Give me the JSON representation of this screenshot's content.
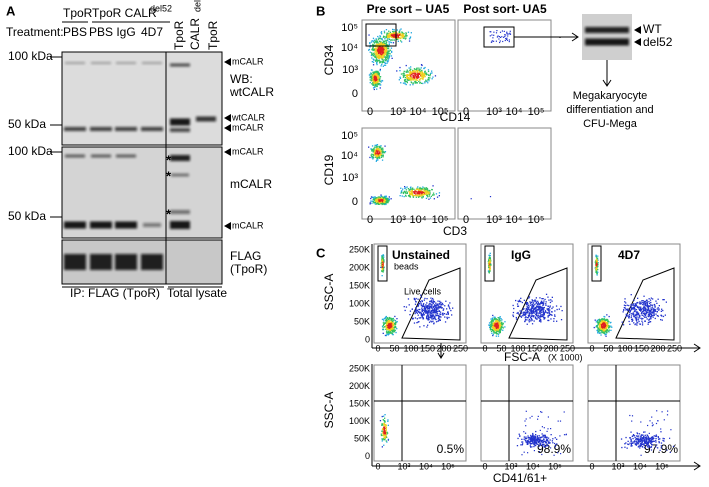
{
  "panel_a": {
    "label": "A",
    "header": {
      "tpor": "TpoR",
      "tpor_calr": "TpoR CALR",
      "tpor_calr_sup": "del52",
      "treatment": "Treatment:",
      "lanes": [
        "PBS",
        "PBS",
        "IgG",
        "4D7"
      ],
      "lysate_tpor": "TpoR",
      "lysate_calr": "CALR",
      "lysate_calr_sup": "del52",
      "lysate_tpor2": "TpoR"
    },
    "markers": [
      "100 kDa",
      "50 kDa",
      "100 kDa",
      "50 kDa"
    ],
    "right_labels": [
      {
        "text": "mCALR",
        "color": "#e0201b"
      },
      {
        "text": "WB:",
        "color": "#000000"
      },
      {
        "text": "wtCALR",
        "color": "#000000"
      },
      {
        "text": "wtCALR",
        "color": "#a0522d"
      },
      {
        "text": "mCALR",
        "color": "#e0201b"
      },
      {
        "text": "mCALR",
        "color": "#e0201b"
      },
      {
        "text": "mCALR",
        "color": "#000000"
      },
      {
        "text": "mCALR",
        "color": "#e0201b"
      },
      {
        "text": "FLAG",
        "color": "#000000"
      },
      {
        "text": "(TpoR)",
        "color": "#000000"
      }
    ],
    "asterisk": "*",
    "footer": [
      "IP: FLAG (TpoR)",
      "Total lysate"
    ]
  },
  "panel_b": {
    "label": "B",
    "titles": [
      "Pre sort – UA5",
      "Post sort- UA5"
    ],
    "y_labels": [
      "CD34",
      "CD19"
    ],
    "x_labels": [
      "CD14",
      "CD3"
    ],
    "log_ticks": [
      "10⁵",
      "10⁴",
      "10³",
      "0"
    ],
    "x_log_ticks": [
      "0",
      "10³",
      "10⁴",
      "10⁵"
    ],
    "bands": [
      "WT",
      "del52"
    ],
    "note": [
      "Megakaryocyte",
      "differentiation and",
      "CFU-Mega"
    ]
  },
  "panel_c": {
    "label": "C",
    "titles": [
      "Unstained",
      "IgG",
      "4D7"
    ],
    "beads": "beads",
    "live": "Live cells",
    "y_label": "SSC-A",
    "x_label": "FSC-A",
    "x_unit": "(X 1000)",
    "yticks": [
      "250K",
      "200K",
      "150K",
      "100K",
      "50K",
      "0"
    ],
    "xticks": [
      "0",
      "50",
      "100",
      "150",
      "200",
      "250"
    ],
    "log_xticks": [
      "0",
      "10³",
      "10⁴",
      "10⁵"
    ],
    "percents": [
      "0.5%",
      "98.9%",
      "97.9%"
    ],
    "bottom_label": "CD41/61+"
  }
}
